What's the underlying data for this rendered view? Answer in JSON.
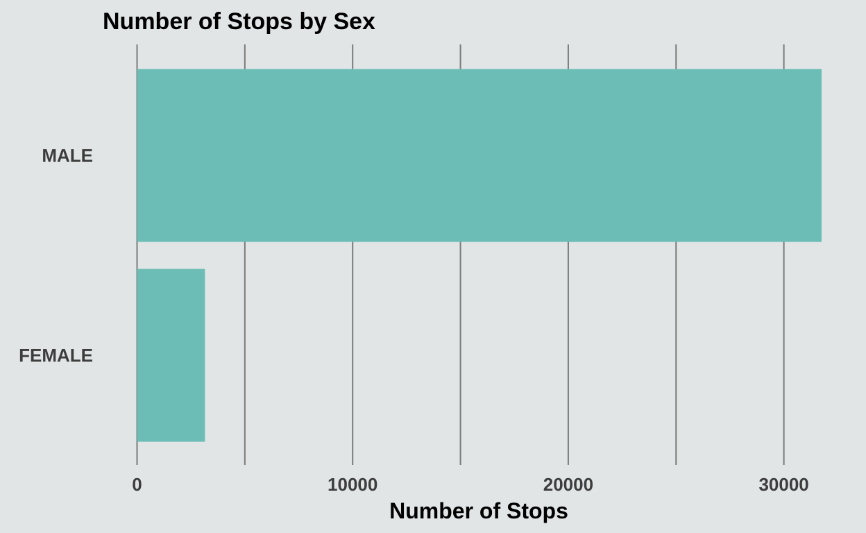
{
  "chart_data": {
    "type": "bar",
    "orientation": "horizontal",
    "title": "Number of Stops by Sex",
    "xlabel": "Number of Stops",
    "ylabel": "",
    "categories": [
      "MALE",
      "FEMALE"
    ],
    "values": [
      31750,
      3150
    ],
    "xlim": [
      0,
      31750
    ],
    "x_ticks": [
      0,
      5000,
      10000,
      15000,
      20000,
      25000,
      30000
    ],
    "x_tick_labels": [
      "0",
      "",
      "10000",
      "",
      "20000",
      "",
      "30000"
    ],
    "grid": "vertical",
    "legend": "none",
    "bar_color": "#6dbdb7",
    "background_color": "#e1e5e6"
  }
}
